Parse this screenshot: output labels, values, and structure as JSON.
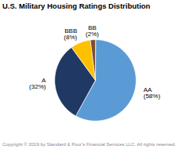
{
  "chart_data": {
    "type": "pie",
    "title": "U.S. Military Housing Ratings Distribution",
    "categories": [
      "AA",
      "A",
      "BBB",
      "BB"
    ],
    "values": [
      58,
      32,
      8,
      2
    ],
    "colors": [
      "#5b9bd5",
      "#1f3864",
      "#ffc000",
      "#7b4f2e"
    ],
    "data_labels": true,
    "value_labels": [
      "(58%)",
      "(32%)",
      "(8%)",
      "(2%)"
    ],
    "annotations": [
      "Copyright © 2019 by Standard & Poor’s Financial Services LLC. All rights reserved."
    ]
  }
}
